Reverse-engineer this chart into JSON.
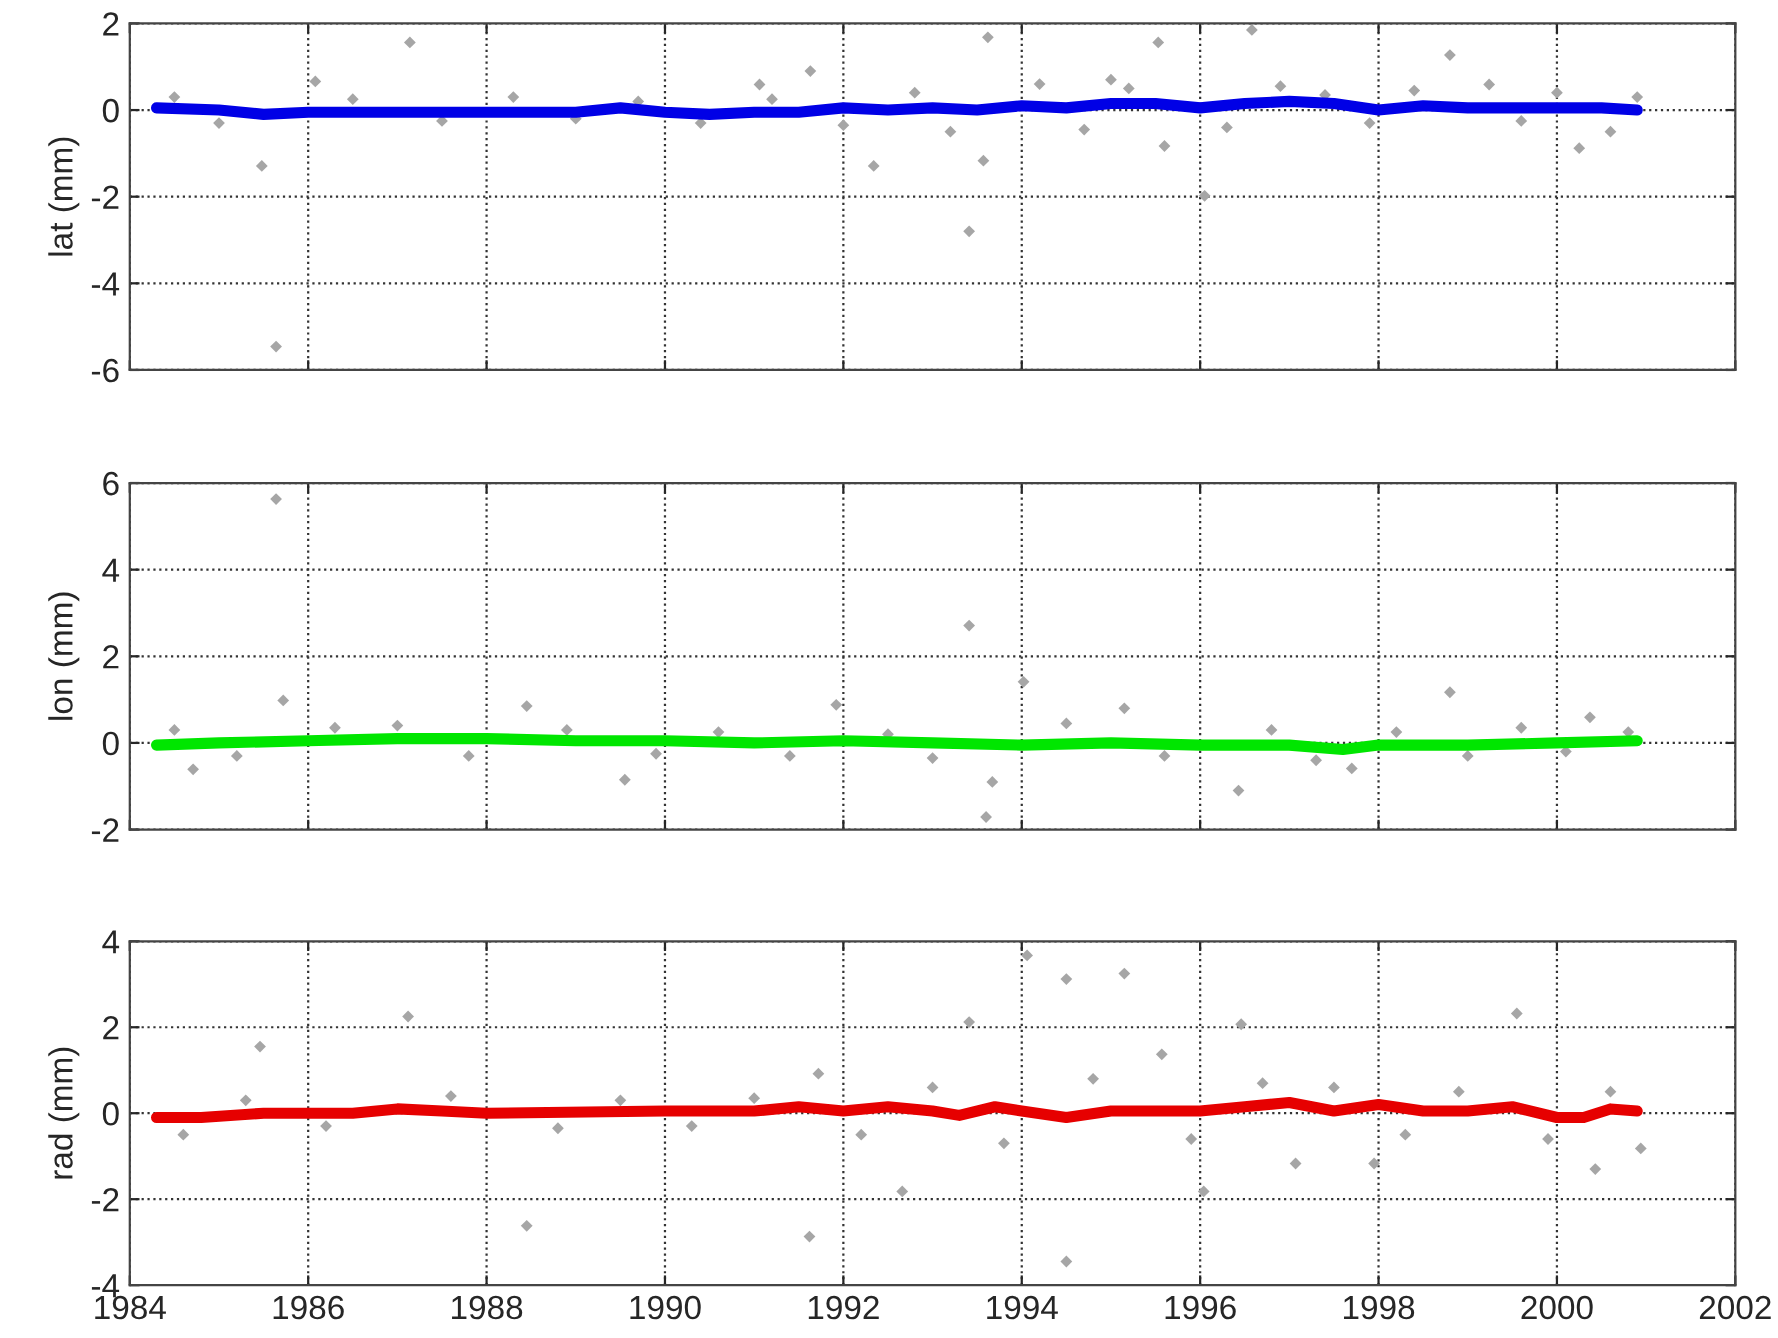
{
  "chart_data": [
    {
      "type": "scatter",
      "ylabel": "lat (mm)",
      "xlim": [
        1984,
        2002
      ],
      "xticks": [
        1984,
        1986,
        1988,
        1990,
        1992,
        1994,
        1996,
        1998,
        2000,
        2002
      ],
      "ylim": [
        -6,
        2
      ],
      "yticks": [
        -6,
        -4,
        -2,
        0,
        2
      ],
      "tick_labels": "y",
      "grid": true,
      "legend": false,
      "series": [
        {
          "color": "#a6a6a6",
          "marker": "diamond",
          "x": [
            1987.14,
            1985.64,
            1985.48,
            1993.41,
            1992.34,
            1993.57,
            1996.05,
            1993.62,
            1995.53,
            1996.58,
            1998.8,
            1991.06,
            1991.63,
            1986.08,
            1995.0,
            2000.25,
            1995.6,
            1999.24,
            1984.5,
            1985.0,
            1986.5,
            1987.5,
            1988.3,
            1989.0,
            1989.7,
            1990.4,
            1991.2,
            1992.0,
            1992.8,
            1993.2,
            1994.2,
            1994.7,
            1995.2,
            1996.3,
            1996.9,
            1997.4,
            1997.9,
            1998.4,
            1999.6,
            2000.0,
            2000.6,
            2000.9
          ],
          "values": [
            1.56,
            -5.46,
            -1.29,
            -2.8,
            -1.29,
            -1.17,
            -1.98,
            1.68,
            1.56,
            1.85,
            1.27,
            0.59,
            0.9,
            0.66,
            0.7,
            -0.88,
            -0.83,
            0.59,
            0.3,
            -0.3,
            0.25,
            -0.25,
            0.3,
            -0.2,
            0.2,
            -0.3,
            0.25,
            -0.35,
            0.4,
            -0.5,
            0.6,
            -0.45,
            0.5,
            -0.4,
            0.55,
            0.35,
            -0.3,
            0.45,
            -0.25,
            0.4,
            -0.5,
            0.3
          ]
        },
        {
          "type": "line",
          "color": "#0000e6",
          "marker": "none",
          "x": [
            1984.3,
            1985,
            1985.5,
            1986,
            1987,
            1988,
            1989,
            1989.5,
            1990,
            1990.5,
            1991,
            1991.5,
            1992,
            1992.5,
            1993,
            1993.5,
            1994,
            1994.5,
            1995,
            1995.5,
            1996,
            1996.5,
            1997,
            1997.5,
            1998,
            1998.5,
            1999,
            1999.5,
            2000,
            2000.5,
            2000.9
          ],
          "values": [
            0.05,
            0.0,
            -0.1,
            -0.05,
            -0.05,
            -0.05,
            -0.05,
            0.05,
            -0.05,
            -0.1,
            -0.05,
            -0.05,
            0.05,
            0.0,
            0.05,
            0.0,
            0.1,
            0.05,
            0.15,
            0.15,
            0.05,
            0.15,
            0.2,
            0.15,
            0.0,
            0.1,
            0.05,
            0.05,
            0.05,
            0.05,
            0.0
          ]
        }
      ]
    },
    {
      "type": "scatter",
      "ylabel": "lon (mm)",
      "xlim": [
        1984,
        2002
      ],
      "xticks": [
        1984,
        1986,
        1988,
        1990,
        1992,
        1994,
        1996,
        1998,
        2000,
        2002
      ],
      "ylim": [
        -2,
        6
      ],
      "yticks": [
        -2,
        0,
        2,
        4,
        6
      ],
      "tick_labels": "y",
      "grid": true,
      "legend": false,
      "series": [
        {
          "color": "#a6a6a6",
          "marker": "diamond",
          "x": [
            1985.64,
            1993.41,
            1994.02,
            1998.8,
            1993.6,
            1993.67,
            1996.43,
            1989.55,
            1985.72,
            1988.45,
            1995.15,
            1991.92,
            2000.37,
            1984.71,
            1997.7,
            1984.5,
            1985.2,
            1986.3,
            1987.0,
            1987.8,
            1988.9,
            1989.9,
            1990.6,
            1991.4,
            1992.5,
            1993.0,
            1994.5,
            1995.6,
            1996.8,
            1997.3,
            1998.2,
            1999.0,
            1999.6,
            2000.1,
            2000.8
          ],
          "values": [
            5.63,
            2.71,
            1.41,
            1.17,
            -1.71,
            -0.9,
            -1.1,
            -0.85,
            0.98,
            0.85,
            0.8,
            0.88,
            0.59,
            -0.61,
            -0.59,
            0.3,
            -0.3,
            0.35,
            0.4,
            -0.3,
            0.3,
            -0.25,
            0.25,
            -0.3,
            0.2,
            -0.35,
            0.45,
            -0.3,
            0.3,
            -0.4,
            0.25,
            -0.3,
            0.35,
            -0.2,
            0.25
          ]
        },
        {
          "type": "line",
          "color": "#00e600",
          "marker": "none",
          "x": [
            1984.3,
            1985,
            1986,
            1987,
            1988,
            1989,
            1990,
            1991,
            1992,
            1993,
            1994,
            1995,
            1996,
            1997,
            1997.6,
            1998,
            1999,
            2000,
            2000.9
          ],
          "values": [
            -0.05,
            0.0,
            0.05,
            0.1,
            0.1,
            0.05,
            0.05,
            0.0,
            0.05,
            0.0,
            -0.05,
            0.0,
            -0.05,
            -0.05,
            -0.15,
            -0.05,
            -0.05,
            0.0,
            0.05
          ]
        }
      ]
    },
    {
      "type": "scatter",
      "ylabel": "rad (mm)",
      "xlim": [
        1984,
        2002
      ],
      "xticks": [
        1984,
        1986,
        1988,
        1990,
        1992,
        1994,
        1996,
        1998,
        2000,
        2002
      ],
      "ylim": [
        -4,
        4
      ],
      "yticks": [
        -4,
        -2,
        0,
        2,
        4
      ],
      "grid": true,
      "legend": false,
      "series": [
        {
          "color": "#a6a6a6",
          "marker": "diamond",
          "x": [
            1994.06,
            1994.5,
            1995.15,
            1999.55,
            1987.12,
            1985.46,
            1988.45,
            1991.62,
            1994.5,
            1992.66,
            1996.04,
            1996.46,
            1993.41,
            1997.07,
            1997.95,
            2000.94,
            2000.43,
            1995.57,
            1991.72,
            1984.6,
            1985.3,
            1986.2,
            1987.6,
            1988.8,
            1989.5,
            1990.3,
            1991.0,
            1992.2,
            1993.0,
            1993.8,
            1994.8,
            1995.9,
            1996.7,
            1997.5,
            1998.3,
            1998.9,
            1999.9,
            2000.6
          ],
          "values": [
            3.67,
            3.12,
            3.25,
            2.32,
            2.25,
            1.55,
            -2.62,
            -2.87,
            -3.45,
            -1.82,
            -1.82,
            2.07,
            2.12,
            -1.17,
            -1.17,
            -0.82,
            -1.3,
            1.37,
            0.92,
            -0.5,
            0.3,
            -0.3,
            0.4,
            -0.35,
            0.3,
            -0.3,
            0.35,
            -0.5,
            0.6,
            -0.7,
            0.8,
            -0.6,
            0.7,
            0.6,
            -0.5,
            0.5,
            -0.6,
            0.5
          ]
        },
        {
          "type": "line",
          "color": "#e60000",
          "marker": "none",
          "x": [
            1984.3,
            1984.8,
            1985.5,
            1986,
            1986.5,
            1987,
            1987.5,
            1988,
            1990,
            1991,
            1991.5,
            1992,
            1992.5,
            1993,
            1993.3,
            1993.7,
            1994,
            1994.5,
            1995,
            1996,
            1996.5,
            1997,
            1997.5,
            1998,
            1998.5,
            1999,
            1999.5,
            2000,
            2000.3,
            2000.6,
            2000.9
          ],
          "values": [
            -0.1,
            -0.1,
            0.0,
            0.0,
            0.0,
            0.1,
            0.05,
            0.0,
            0.05,
            0.05,
            0.15,
            0.05,
            0.15,
            0.05,
            -0.05,
            0.15,
            0.05,
            -0.1,
            0.05,
            0.05,
            0.15,
            0.25,
            0.05,
            0.2,
            0.05,
            0.05,
            0.15,
            -0.1,
            -0.1,
            0.1,
            0.05
          ]
        }
      ]
    }
  ]
}
